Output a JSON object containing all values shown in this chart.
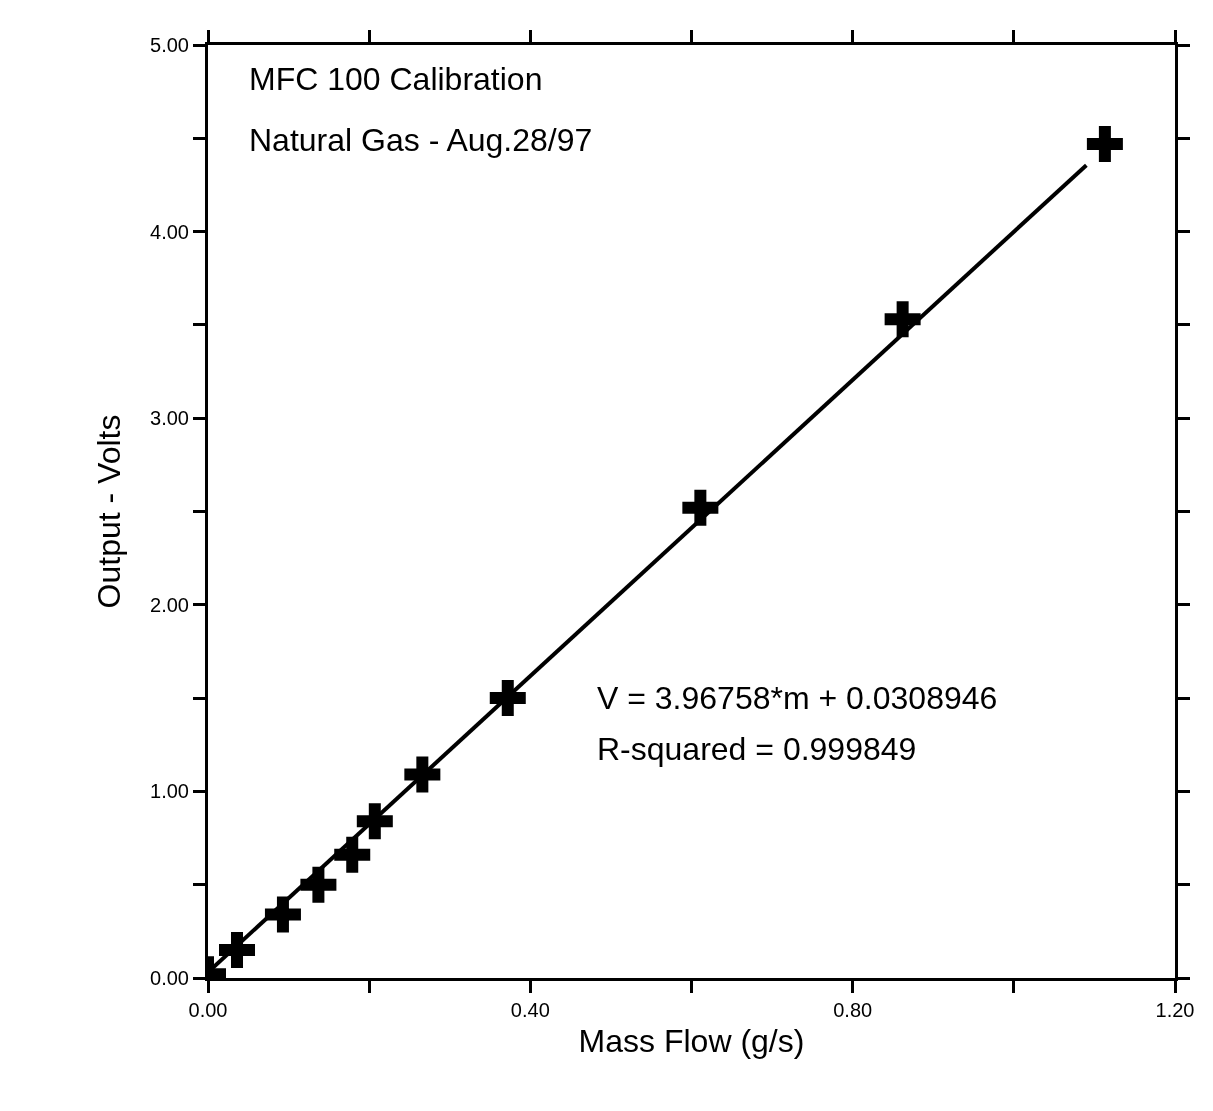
{
  "chart_data": {
    "type": "scatter",
    "title": "MFC 100 Calibration",
    "subtitle": "Natural Gas - Aug.28/97",
    "xlabel": "Mass Flow (g/s)",
    "ylabel": "Output - Volts",
    "annotations": [
      "V = 3.96758*m + 0.0308946",
      "R-squared = 0.999849"
    ],
    "xlim": [
      0,
      1.2
    ],
    "ylim": [
      0,
      5
    ],
    "xticks": [
      {
        "value": 0,
        "label": "0.00"
      },
      {
        "value": 0.2,
        "label": null
      },
      {
        "value": 0.4,
        "label": "0.40"
      },
      {
        "value": 0.6,
        "label": null
      },
      {
        "value": 0.8,
        "label": "0.80"
      },
      {
        "value": 1.0,
        "label": null
      },
      {
        "value": 1.2,
        "label": "1.20"
      }
    ],
    "yticks": [
      {
        "value": 0,
        "label": "0.00"
      },
      {
        "value": 0.5,
        "label": null
      },
      {
        "value": 1,
        "label": "1.00"
      },
      {
        "value": 1.5,
        "label": null
      },
      {
        "value": 2,
        "label": "2.00"
      },
      {
        "value": 2.5,
        "label": null
      },
      {
        "value": 3,
        "label": "3.00"
      },
      {
        "value": 3.5,
        "label": null
      },
      {
        "value": 4,
        "label": "4.00"
      },
      {
        "value": 4.5,
        "label": null
      },
      {
        "value": 5,
        "label": "5.00"
      }
    ],
    "grid": false,
    "series": [
      {
        "color": "#000000",
        "marker": "cross",
        "x": [
          0,
          0.036,
          0.093,
          0.137,
          0.179,
          0.207,
          0.266,
          0.372,
          0.611,
          0.862,
          1.113
        ],
        "values": [
          0.02,
          0.15,
          0.34,
          0.5,
          0.66,
          0.84,
          1.09,
          1.5,
          2.52,
          3.53,
          4.47
        ]
      },
      {
        "type": "line",
        "color": "#000000",
        "line_style": "solid",
        "x": [
          0,
          1.09
        ],
        "values": [
          0.031,
          4.356
        ]
      }
    ]
  }
}
